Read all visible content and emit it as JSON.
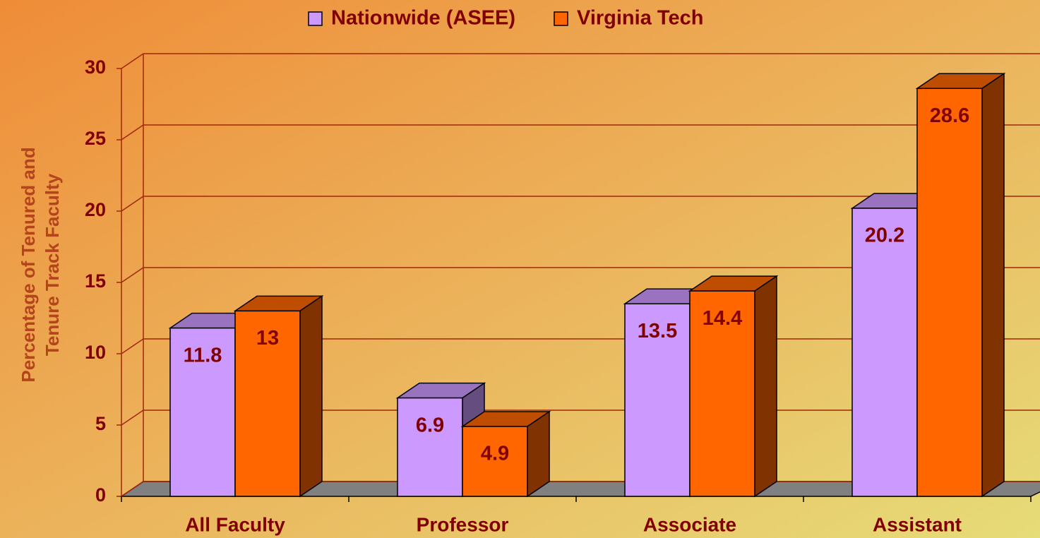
{
  "chart_data": {
    "type": "bar3d",
    "y_label": [
      "Percentage of Tenured and",
      "Tenure Track Faculty"
    ],
    "categories": [
      "All Faculty",
      "Professor",
      "Associate",
      "Assistant"
    ],
    "series": [
      {
        "name": "Nationwide (ASEE)",
        "color": "#cc99ff",
        "values": [
          11.8,
          6.9,
          13.5,
          20.2
        ]
      },
      {
        "name": "Virginia Tech",
        "color": "#ff6600",
        "values": [
          13,
          4.9,
          14.4,
          28.6
        ]
      }
    ],
    "ylim": [
      0,
      30
    ],
    "yticks": [
      0,
      5,
      10,
      15,
      20,
      25,
      30
    ],
    "grid": true,
    "legend": "top"
  }
}
